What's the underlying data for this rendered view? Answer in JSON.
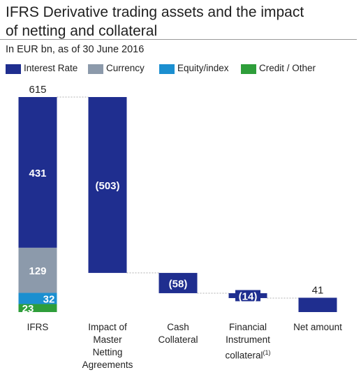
{
  "header": {
    "title": "IFRS Derivative trading assets and the impact\nof netting and collateral",
    "subtitle": "In EUR bn, as of 30 June 2016"
  },
  "legend": [
    {
      "label": "Interest Rate",
      "color": "#1f2e8f"
    },
    {
      "label": "Currency",
      "color": "#8c9aab"
    },
    {
      "label": "Equity/index",
      "color": "#1b8fd0"
    },
    {
      "label": "Credit / Other",
      "color": "#2e9e3a"
    }
  ],
  "chart_data": {
    "type": "bar",
    "subtype": "waterfall",
    "categories": [
      "IFRS",
      "Impact of\nMaster\nNetting\nAgreements",
      "Cash\nCollateral",
      "Financial\nInstrument\ncollateral",
      "Net amount"
    ],
    "category_footnote": "(1)",
    "ifrs_breakdown": [
      {
        "name": "Credit / Other",
        "value": 23,
        "label": "23",
        "color": "#2e9e3a"
      },
      {
        "name": "Equity/index",
        "value": 32,
        "label": "32",
        "color": "#1b8fd0"
      },
      {
        "name": "Currency",
        "value": 129,
        "label": "129",
        "color": "#8c9aab"
      },
      {
        "name": "Interest Rate",
        "value": 431,
        "label": "431",
        "color": "#1f2e8f"
      }
    ],
    "ifrs_total": 615,
    "ifrs_total_label": "615",
    "steps": [
      {
        "value": -503,
        "label": "(503)"
      },
      {
        "value": -58,
        "label": "(58)"
      },
      {
        "value": -14,
        "label": "(14)"
      }
    ],
    "net_amount": 41,
    "net_amount_label": "41",
    "step_color": "#1f2e8f",
    "connector_color": "#b0b0b0"
  }
}
